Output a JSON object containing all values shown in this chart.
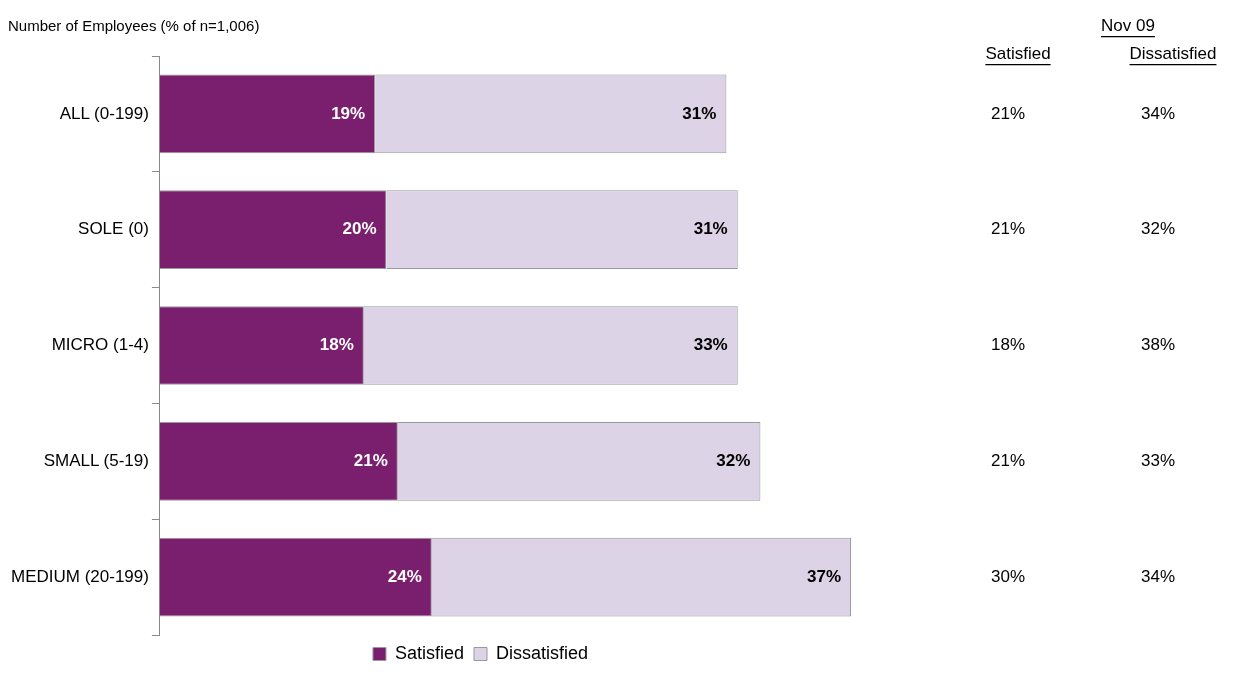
{
  "chart_data": {
    "type": "bar",
    "orientation": "horizontal",
    "stacked": true,
    "title": "Number of Employees (% of n=1,006)",
    "categories": [
      "ALL (0-199)",
      "SOLE (0)",
      "MICRO (1-4)",
      "SMALL (5-19)",
      "MEDIUM (20-199)"
    ],
    "series": [
      {
        "name": "Satisfied",
        "color": "#7a1f6e",
        "values": [
          19,
          20,
          18,
          21,
          24
        ],
        "value_labels": [
          "19%",
          "20%",
          "18%",
          "21%",
          "24%"
        ]
      },
      {
        "name": "Dissatisfied",
        "color": "#dcd3e6",
        "values": [
          31,
          31,
          33,
          32,
          37
        ],
        "value_labels": [
          "31%",
          "31%",
          "33%",
          "32%",
          "37%"
        ]
      }
    ],
    "tick_labels": "y",
    "grid": false,
    "legend": "bottom",
    "annotations": [
      "Nov 09",
      "Satisfied",
      "Dissatisfied",
      "21%",
      "34%",
      "21%",
      "32%",
      "18%",
      "38%",
      "21%",
      "33%",
      "30%",
      "34%"
    ]
  }
}
